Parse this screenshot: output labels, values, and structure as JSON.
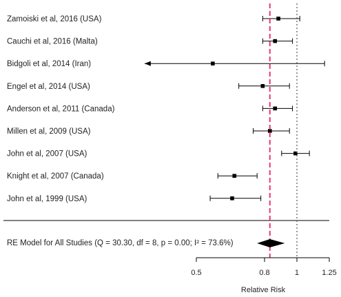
{
  "chart_data": {
    "type": "forest",
    "xlabel": "Relative Risk",
    "x_scale": "log",
    "xlim": [
      0.5,
      1.25
    ],
    "ticks": [
      {
        "value": 0.5,
        "label": "0.5"
      },
      {
        "value": 0.8,
        "label": "0.8"
      },
      {
        "value": 1.0,
        "label": "1"
      },
      {
        "value": 1.25,
        "label": "1.25"
      }
    ],
    "reference_line": 1.0,
    "summary_line": 0.83,
    "studies": [
      {
        "label": "Zamoiski et al, 2016 (USA)",
        "rr": 0.88,
        "lower": 0.79,
        "upper": 1.02
      },
      {
        "label": "Cauchi et al, 2016 (Malta)",
        "rr": 0.86,
        "lower": 0.79,
        "upper": 0.97
      },
      {
        "label": "Bidgoli et al, 2014 (Iran)",
        "rr": 0.56,
        "lower": 0.35,
        "upper": 1.21,
        "arrow_left": true
      },
      {
        "label": "Engel et al, 2014 (USA)",
        "rr": 0.79,
        "lower": 0.67,
        "upper": 0.95
      },
      {
        "label": "Anderson et al, 2011 (Canada)",
        "rr": 0.86,
        "lower": 0.79,
        "upper": 0.97
      },
      {
        "label": "Millen et al, 2009 (USA)",
        "rr": 0.83,
        "lower": 0.74,
        "upper": 0.95
      },
      {
        "label": "John et al, 2007 (USA)",
        "rr": 0.99,
        "lower": 0.9,
        "upper": 1.09
      },
      {
        "label": "Knight et al, 2007 (Canada)",
        "rr": 0.65,
        "lower": 0.58,
        "upper": 0.76
      },
      {
        "label": "John et al, 1999 (USA)",
        "rr": 0.64,
        "lower": 0.55,
        "upper": 0.78
      }
    ],
    "summary": {
      "label": "RE Model for All Studies (Q = 30.30, df = 8, p = 0.00; I² = 73.6%)",
      "rr": 0.83,
      "lower": 0.76,
      "upper": 0.92
    },
    "colors": {
      "summary_line": "#e8357a",
      "reference_line": "#555555",
      "marks": "#000000"
    }
  }
}
